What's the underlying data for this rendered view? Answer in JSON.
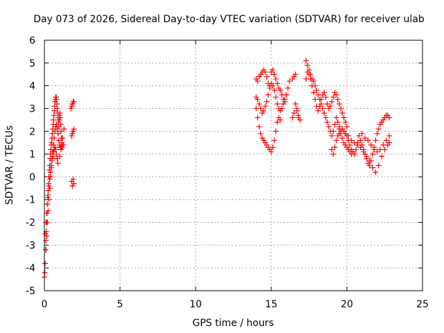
{
  "chart_data": {
    "type": "scatter",
    "title": "Day 073 of 2026, Sidereal Day-to-day VTEC variation (SDTVAR) for receiver ulab",
    "xlabel": "GPS time / hours",
    "ylabel": "SDTVAR / TECUs",
    "xlim": [
      0,
      25
    ],
    "ylim": [
      -5,
      6
    ],
    "xticks": [
      0,
      5,
      10,
      15,
      20,
      25
    ],
    "yticks": [
      -5,
      -4,
      -3,
      -2,
      -1,
      0,
      1,
      2,
      3,
      4,
      5,
      6
    ],
    "xtick_labels": [
      "0",
      "5",
      "10",
      "15",
      "20",
      "25"
    ],
    "ytick_labels": [
      "-5",
      "-4",
      "-3",
      "-2",
      "-1",
      "0",
      "1",
      "2",
      "3",
      "4",
      "5",
      "6"
    ],
    "grid": true,
    "marker": "+",
    "color": "#ff0000",
    "series": [
      {
        "name": "SDTVAR",
        "x": [
          0.0,
          0.03,
          0.05,
          0.08,
          0.1,
          0.12,
          0.15,
          0.18,
          0.2,
          0.22,
          0.25,
          0.28,
          0.3,
          0.33,
          0.35,
          0.38,
          0.4,
          0.43,
          0.45,
          0.48,
          0.5,
          0.53,
          0.55,
          0.58,
          0.6,
          0.63,
          0.65,
          0.68,
          0.7,
          0.73,
          0.75,
          0.78,
          0.8,
          0.83,
          0.85,
          0.88,
          0.9,
          0.93,
          0.95,
          0.98,
          1.0,
          1.03,
          1.05,
          1.08,
          1.1,
          1.13,
          1.15,
          1.2,
          1.25,
          0.1,
          0.15,
          0.2,
          0.25,
          0.3,
          0.35,
          0.4,
          0.45,
          0.5,
          0.55,
          0.6,
          0.65,
          0.7,
          0.75,
          0.8,
          0.85,
          0.9,
          0.95,
          1.0,
          1.05,
          1.1,
          1.15,
          1.2,
          0.05,
          0.1,
          0.15,
          0.2,
          0.25,
          0.3,
          0.35,
          0.4,
          0.45,
          0.5,
          0.55,
          0.6,
          0.65,
          0.7,
          0.75,
          0.8,
          0.85,
          0.9,
          1.0,
          1.1,
          1.2,
          1.3,
          1.75,
          1.8,
          1.85,
          1.9,
          1.95,
          1.8,
          1.85,
          1.9,
          1.95,
          1.8,
          1.85,
          1.9,
          1.95,
          14.0,
          14.1,
          14.2,
          14.3,
          14.4,
          14.5,
          14.6,
          14.7,
          14.8,
          14.9,
          15.0,
          15.1,
          15.2,
          15.3,
          15.4,
          15.5,
          15.6,
          15.7,
          15.8,
          15.9,
          16.0,
          16.1,
          16.2,
          14.0,
          14.1,
          14.2,
          14.3,
          14.4,
          14.5,
          14.6,
          14.7,
          14.8,
          14.9,
          15.0,
          15.1,
          15.2,
          15.3,
          15.4,
          15.5,
          15.6,
          15.7,
          15.8,
          15.9,
          16.0,
          14.0,
          14.1,
          14.2,
          14.3,
          14.4,
          14.5,
          14.6,
          14.7,
          14.8,
          14.9,
          15.0,
          15.1,
          15.2,
          15.3,
          15.4,
          15.5,
          15.6,
          16.4,
          16.5,
          16.6,
          16.7,
          16.8,
          16.9,
          16.4,
          16.5,
          16.6,
          16.7,
          16.8,
          17.3,
          17.4,
          17.5,
          17.6,
          17.7,
          17.8,
          17.9,
          18.0,
          18.1,
          18.2,
          18.3,
          18.4,
          18.5,
          18.6,
          18.7,
          18.8,
          18.9,
          19.0,
          19.1,
          19.2,
          19.3,
          19.4,
          19.5,
          19.6,
          19.7,
          19.8,
          19.9,
          20.0,
          20.1,
          20.2,
          20.3,
          17.3,
          17.4,
          17.5,
          17.6,
          17.7,
          17.8,
          17.9,
          18.0,
          18.1,
          18.2,
          18.3,
          18.4,
          18.5,
          18.6,
          18.7,
          18.8,
          18.9,
          19.0,
          19.1,
          19.2,
          19.3,
          19.4,
          19.5,
          19.6,
          19.7,
          19.8,
          19.9,
          20.0,
          19.0,
          19.1,
          19.2,
          19.3,
          19.4,
          19.5,
          19.6,
          19.7,
          19.8,
          19.9,
          20.0,
          20.1,
          20.2,
          20.3,
          20.4,
          20.5,
          20.6,
          20.7,
          20.8,
          20.9,
          21.0,
          21.1,
          21.2,
          21.3,
          21.4,
          21.5,
          21.6,
          21.7,
          21.8,
          21.9,
          22.0,
          22.1,
          22.2,
          22.3,
          22.4,
          22.5,
          22.6,
          22.7,
          22.8,
          19.5,
          19.7,
          19.9,
          20.1,
          20.3,
          20.5,
          20.7,
          20.9,
          21.1,
          21.3,
          21.5,
          21.7,
          21.9,
          22.1,
          22.3,
          22.5,
          22.7,
          22.8,
          21.0,
          21.2,
          21.4,
          21.6,
          21.8,
          22.0,
          22.2,
          22.4,
          22.6,
          22.8
        ],
        "y": [
          -4.4,
          -4.2,
          -3.8,
          -3.2,
          -2.8,
          -2.4,
          -2.0,
          -1.6,
          -1.2,
          -0.9,
          -0.6,
          -0.3,
          0.0,
          0.3,
          0.5,
          0.8,
          1.0,
          1.2,
          1.4,
          1.5,
          1.7,
          1.9,
          2.1,
          2.3,
          2.5,
          2.7,
          2.9,
          3.1,
          3.3,
          3.4,
          3.5,
          3.5,
          3.4,
          3.2,
          3.0,
          2.8,
          2.6,
          2.4,
          2.2,
          2.5,
          2.7,
          2.8,
          2.6,
          2.3,
          2.0,
          1.7,
          1.5,
          1.3,
          1.4,
          -3.2,
          -2.6,
          -2.0,
          -1.5,
          -1.0,
          -0.5,
          0.0,
          0.4,
          0.8,
          1.1,
          1.4,
          1.7,
          2.0,
          2.2,
          2.3,
          2.1,
          1.9,
          1.6,
          1.4,
          1.3,
          1.2,
          1.3,
          1.4,
          -2.5,
          -2.0,
          -1.6,
          -1.2,
          -0.8,
          -0.4,
          -0.1,
          0.2,
          0.5,
          0.7,
          0.9,
          1.1,
          1.2,
          1.3,
          1.2,
          1.0,
          0.8,
          0.6,
          0.9,
          1.3,
          1.7,
          2.1,
          3.0,
          3.1,
          3.2,
          3.3,
          3.3,
          1.8,
          1.9,
          2.0,
          2.1,
          -0.2,
          -0.4,
          -0.1,
          -0.3,
          4.3,
          4.2,
          4.4,
          4.5,
          4.6,
          4.7,
          4.6,
          4.4,
          4.1,
          4.0,
          4.6,
          4.7,
          4.5,
          4.3,
          4.1,
          3.9,
          3.8,
          3.6,
          3.4,
          3.3,
          3.6,
          3.9,
          4.2,
          3.5,
          3.4,
          3.2,
          3.0,
          2.8,
          2.9,
          3.1,
          3.3,
          3.6,
          3.9,
          4.1,
          4.0,
          3.8,
          3.5,
          3.2,
          3.0,
          2.9,
          3.0,
          3.2,
          3.4,
          3.6,
          3.0,
          2.6,
          2.2,
          1.9,
          1.7,
          1.6,
          1.5,
          1.4,
          1.3,
          1.2,
          1.1,
          1.3,
          1.6,
          2.0,
          2.4,
          2.6,
          2.5,
          4.3,
          4.4,
          4.5,
          3.0,
          2.7,
          2.5,
          2.6,
          2.8,
          3.2,
          2.9,
          2.6,
          5.1,
          4.9,
          4.7,
          4.5,
          4.3,
          4.2,
          4.0,
          3.8,
          3.6,
          3.4,
          3.2,
          3.0,
          2.8,
          2.6,
          2.4,
          2.2,
          2.0,
          1.8,
          2.0,
          2.3,
          2.6,
          2.4,
          2.1,
          1.9,
          1.7,
          1.5,
          1.4,
          1.3,
          1.2,
          1.1,
          1.0,
          4.3,
          4.6,
          4.5,
          4.3,
          4.0,
          3.7,
          3.4,
          3.1,
          2.9,
          3.1,
          3.4,
          3.6,
          3.7,
          3.5,
          3.2,
          3.0,
          3.1,
          3.3,
          3.5,
          3.7,
          3.6,
          3.4,
          3.2,
          3.0,
          2.8,
          2.6,
          2.4,
          2.2,
          1.2,
          1.0,
          1.3,
          1.6,
          1.8,
          1.9,
          2.0,
          2.1,
          2.0,
          1.9,
          1.8,
          1.6,
          1.4,
          1.2,
          1.1,
          1.0,
          1.2,
          1.5,
          1.8,
          1.6,
          1.4,
          1.2,
          1.0,
          0.8,
          0.6,
          0.5,
          0.7,
          1.0,
          1.3,
          1.6,
          1.9,
          2.1,
          2.3,
          2.4,
          2.5,
          2.6,
          2.7,
          2.7,
          2.6,
          2.2,
          2.1,
          1.9,
          1.8,
          1.6,
          1.5,
          1.4,
          1.3,
          1.1,
          0.9,
          0.7,
          0.4,
          0.2,
          0.5,
          0.9,
          1.2,
          1.4,
          1.5,
          1.9,
          1.7,
          1.6,
          1.4,
          1.2,
          1.1,
          1.2,
          1.4,
          1.6,
          1.8
        ]
      }
    ]
  }
}
